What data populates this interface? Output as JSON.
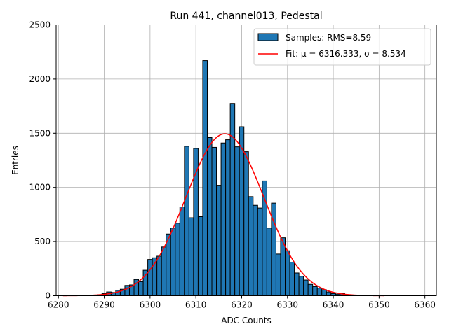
{
  "chart_data": {
    "type": "bar",
    "title": "Run 441, channel013, Pedestal",
    "xlabel": "ADC Counts",
    "ylabel": "Entries",
    "xlim": [
      6279.5,
      6362.5
    ],
    "ylim": [
      0,
      2500
    ],
    "xticks": [
      6280,
      6290,
      6300,
      6310,
      6320,
      6330,
      6340,
      6350,
      6360
    ],
    "yticks": [
      0,
      500,
      1000,
      1500,
      2000,
      2500
    ],
    "grid": true,
    "legend_position": "top-right",
    "bin_width": 1,
    "bins_x": [
      6288,
      6289,
      6290,
      6291,
      6292,
      6293,
      6294,
      6295,
      6296,
      6297,
      6298,
      6299,
      6300,
      6301,
      6302,
      6303,
      6304,
      6305,
      6306,
      6307,
      6308,
      6309,
      6310,
      6311,
      6312,
      6313,
      6314,
      6315,
      6316,
      6317,
      6318,
      6319,
      6320,
      6321,
      6322,
      6323,
      6324,
      6325,
      6326,
      6327,
      6328,
      6329,
      6330,
      6331,
      6332,
      6333,
      6334,
      6335,
      6336,
      6337,
      6338,
      6339,
      6340,
      6341,
      6342,
      6343,
      6344
    ],
    "series": [
      {
        "name": "Samples: RMS=8.59",
        "kind": "histogram",
        "color": "#1f77b4",
        "edgecolor": "#000000",
        "values": [
          5,
          10,
          20,
          35,
          30,
          50,
          60,
          95,
          100,
          150,
          130,
          235,
          335,
          350,
          365,
          450,
          570,
          625,
          670,
          820,
          1380,
          720,
          1360,
          730,
          2170,
          1460,
          1370,
          1020,
          1410,
          1440,
          1775,
          1375,
          1560,
          1330,
          915,
          835,
          810,
          1060,
          625,
          855,
          385,
          535,
          415,
          310,
          210,
          180,
          145,
          105,
          85,
          70,
          55,
          35,
          20,
          15,
          20,
          5,
          2
        ]
      },
      {
        "name": "Fit: μ = 6316.333, σ = 8.534",
        "kind": "gaussian_fit",
        "color": "#ff0000",
        "mu": 6316.333,
        "sigma": 8.534,
        "amplitude": 1495,
        "x_range": [
          6281,
          6351
        ]
      }
    ]
  }
}
